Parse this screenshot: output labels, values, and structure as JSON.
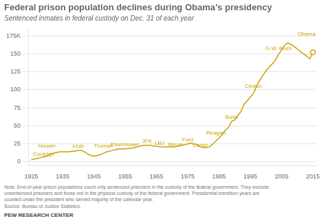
{
  "chart_data": {
    "type": "line",
    "title": "Federal prison population declines during Obama’s presidency",
    "subtitle": "Sentenced inmates in federal custody on Dec. 31 of each year",
    "note": "Note: End-of-year prison populations count only sentenced prisoners in the custody of the federal government. They exclude\nunsentenced prisoners and those not in the physical custody of the federal government. Presidential transition years are\ncounted under the president who served majority of the calendar year.",
    "source": "Source: Bureau of Justice Statistics.",
    "footer": "PEW RESEARCH CENTER",
    "color": "#C8A000",
    "grid": "y",
    "x": [
      1925,
      1926,
      1927,
      1928,
      1929,
      1930,
      1931,
      1932,
      1933,
      1934,
      1935,
      1936,
      1937,
      1938,
      1939,
      1940,
      1941,
      1942,
      1943,
      1944,
      1945,
      1946,
      1947,
      1948,
      1949,
      1950,
      1951,
      1952,
      1953,
      1954,
      1955,
      1956,
      1957,
      1958,
      1959,
      1960,
      1961,
      1962,
      1963,
      1964,
      1965,
      1966,
      1967,
      1968,
      1969,
      1970,
      1971,
      1972,
      1973,
      1974,
      1975,
      1976,
      1977,
      1978,
      1979,
      1980,
      1981,
      1982,
      1983,
      1984,
      1985,
      1986,
      1987,
      1988,
      1989,
      1990,
      1991,
      1992,
      1993,
      1994,
      1995,
      1996,
      1997,
      1998,
      1999,
      2000,
      2001,
      2002,
      2003,
      2004,
      2005,
      2006,
      2007,
      2008,
      2009,
      2010,
      2011,
      2012,
      2013,
      2014,
      2015
    ],
    "values": [
      3,
      4,
      5,
      6,
      7,
      8,
      11,
      12,
      13,
      14,
      14,
      14,
      14,
      15,
      15,
      16,
      16,
      14,
      11,
      9,
      8,
      9,
      10,
      12,
      14,
      15,
      16,
      17,
      18,
      18,
      18,
      19,
      19,
      20,
      21,
      22,
      23,
      23,
      23,
      22,
      22,
      21,
      21,
      21,
      21,
      21,
      21,
      22,
      23,
      24,
      25,
      26,
      25,
      24,
      21,
      20,
      20,
      21,
      25,
      29,
      33,
      38,
      44,
      48,
      56,
      58,
      64,
      70,
      80,
      85,
      90,
      95,
      105,
      113,
      120,
      126,
      131,
      136,
      141,
      149,
      155,
      162,
      165,
      163,
      160,
      157,
      153,
      150,
      147,
      143,
      152
    ],
    "end_marker": {
      "x": 2015,
      "y": 152
    },
    "xlim": [
      1924,
      2016
    ],
    "xticks": [
      1925,
      1935,
      1945,
      1955,
      1965,
      1975,
      1985,
      1995,
      2005,
      2015
    ],
    "ylim": [
      -5,
      185
    ],
    "yticks": [
      0,
      25,
      50,
      75,
      100,
      125,
      150,
      {
        "value": 175,
        "label": "175K"
      }
    ],
    "annotations": [
      {
        "text": "Coolidge",
        "x": 1925.5,
        "y": 4
      },
      {
        "text": "Hoover",
        "x": 1930,
        "y": 15
      },
      {
        "text": "FDR",
        "x": 1940,
        "y": 14
      },
      {
        "text": "Truman",
        "x": 1948,
        "y": 15
      },
      {
        "text": "Eisenhower",
        "x": 1955,
        "y": 17
      },
      {
        "text": "JFK",
        "x": 1962,
        "y": 22
      },
      {
        "text": "LBJ",
        "x": 1966,
        "y": 19
      },
      {
        "text": "Nixon",
        "x": 1971,
        "y": 17
      },
      {
        "text": "Ford",
        "x": 1975,
        "y": 24
      },
      {
        "text": "Carter",
        "x": 1979,
        "y": 16
      },
      {
        "text": "Reagan",
        "x": 1984,
        "y": 33
      },
      {
        "text": "Bush",
        "x": 1989,
        "y": 55
      },
      {
        "text": "Clinton",
        "x": 1996,
        "y": 98
      },
      {
        "text": "G.W. Bush",
        "x": 2004,
        "y": 151
      },
      {
        "text": "Obama",
        "x": 2013,
        "y": 171
      }
    ]
  }
}
